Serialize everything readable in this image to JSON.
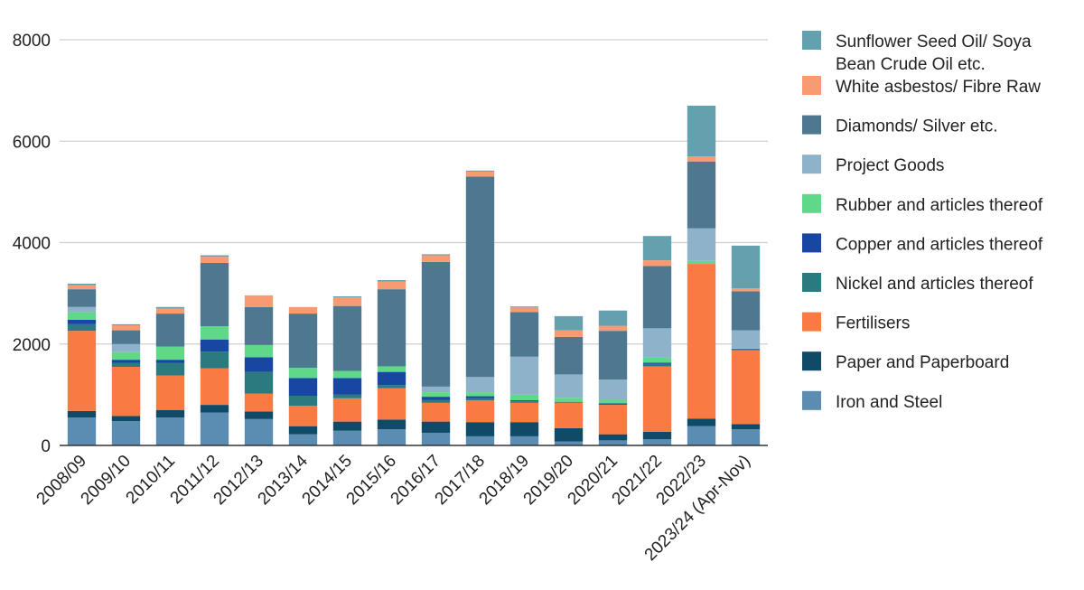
{
  "chart_data": {
    "type": "bar",
    "stacked": true,
    "title": "",
    "xlabel": "",
    "ylabel": "",
    "ylim": [
      0,
      8000
    ],
    "yticks": [
      0,
      2000,
      4000,
      6000,
      8000
    ],
    "ytick_labels": [
      "0",
      "2000",
      "4000",
      "6000",
      "8000"
    ],
    "grid": true,
    "legend_position": "right",
    "categories": [
      "2008/09",
      "2009/10",
      "2010/11",
      "2011/12",
      "2012/13",
      "2013/14",
      "2014/15",
      "2015/16",
      "2016/17",
      "2017/18",
      "2018/19",
      "2019/20",
      "2020/21",
      "2021/22",
      "2022/23",
      "2023/24 (Apr-Nov)"
    ],
    "series": [
      {
        "name": "Iron and Steel",
        "color": "#5b8db3",
        "values": [
          550,
          480,
          550,
          650,
          520,
          220,
          290,
          320,
          250,
          180,
          180,
          80,
          100,
          120,
          380,
          320
        ]
      },
      {
        "name": "Paper and Paperboard",
        "color": "#0f4a66",
        "values": [
          130,
          100,
          150,
          150,
          150,
          160,
          180,
          190,
          220,
          280,
          280,
          260,
          120,
          150,
          150,
          100
        ]
      },
      {
        "name": "Fertilisers",
        "color": "#f97b43",
        "values": [
          1580,
          970,
          680,
          720,
          350,
          400,
          460,
          620,
          370,
          430,
          380,
          500,
          580,
          1290,
          3050,
          1460
        ]
      },
      {
        "name": "Nickel and articles thereof",
        "color": "#2a7a80",
        "values": [
          130,
          80,
          250,
          330,
          430,
          200,
          70,
          60,
          60,
          40,
          30,
          10,
          10,
          50,
          0,
          20
        ]
      },
      {
        "name": "Copper and articles thereof",
        "color": "#1747a1",
        "values": [
          90,
          60,
          60,
          240,
          290,
          350,
          330,
          260,
          60,
          40,
          20,
          10,
          20,
          20,
          0,
          10
        ]
      },
      {
        "name": "Rubber and articles thereof",
        "color": "#5fd88a",
        "values": [
          150,
          150,
          260,
          260,
          240,
          200,
          140,
          110,
          90,
          80,
          110,
          80,
          70,
          100,
          60,
          10
        ]
      },
      {
        "name": "Project Goods",
        "color": "#8eb2c9",
        "values": [
          100,
          160,
          0,
          0,
          0,
          0,
          0,
          0,
          110,
          300,
          750,
          460,
          400,
          580,
          640,
          350
        ]
      },
      {
        "name": "Diamonds/ Silver etc.",
        "color": "#4e7790",
        "values": [
          350,
          270,
          650,
          1250,
          750,
          1070,
          1280,
          1520,
          2460,
          3950,
          880,
          740,
          960,
          1230,
          1320,
          770
        ]
      },
      {
        "name": "White asbestos/ Fibre Raw",
        "color": "#f99b72",
        "values": [
          80,
          100,
          100,
          120,
          230,
          130,
          170,
          150,
          130,
          100,
          90,
          130,
          100,
          110,
          100,
          60
        ]
      },
      {
        "name": "Sunflower Seed Oil/ Soya Bean Crude Oil etc.",
        "color": "#63a1ae",
        "values": [
          30,
          20,
          30,
          30,
          0,
          0,
          20,
          30,
          20,
          20,
          20,
          280,
          300,
          480,
          1000,
          840
        ]
      }
    ],
    "legend_order": [
      "Sunflower Seed Oil/ Soya Bean Crude Oil etc.",
      "White asbestos/ Fibre Raw",
      "Diamonds/ Silver etc.",
      "Project Goods",
      "Rubber and articles thereof",
      "Copper and articles thereof",
      "Nickel and articles thereof",
      "Fertilisers",
      "Paper and Paperboard",
      "Iron and Steel"
    ]
  }
}
